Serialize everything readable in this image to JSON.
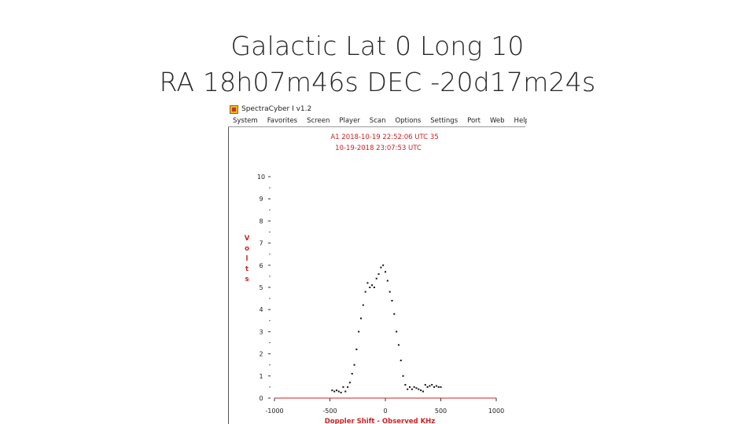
{
  "slide": {
    "title_line1": "Galactic Lat 0 Long 10",
    "title_line2": "RA 18h07m46s DEC -20d17m24s"
  },
  "window": {
    "title": "SpectraCyber I v1.2",
    "icon": "spectracyber-app-icon"
  },
  "menu": {
    "items": [
      "System",
      "Favorites",
      "Screen",
      "Player",
      "Scan",
      "Options",
      "Settings",
      "Port",
      "Web",
      "Help"
    ]
  },
  "plot_header": {
    "line1": "A1 2018-10-19 22:52:06 UTC 35",
    "line2": "10-19-2018  23:07:53 UTC"
  },
  "colors": {
    "accent_red": "#cc2222",
    "data_points": "#111111"
  },
  "chart_data": {
    "type": "scatter",
    "title": "",
    "xlabel": "Doppler Shift - Observed KHz",
    "ylabel": "Volts",
    "ylabel_letters": [
      "V",
      "o",
      "l",
      "t",
      "s"
    ],
    "xlim": [
      -1000,
      1000
    ],
    "ylim": [
      0,
      10
    ],
    "x_ticks": [
      -1000,
      -500,
      0,
      500,
      1000
    ],
    "x_tick_labels": [
      "-1000",
      "-500",
      "0",
      "500",
      "1000"
    ],
    "y_ticks": [
      0,
      1,
      2,
      3,
      4,
      5,
      6,
      7,
      8,
      9,
      10
    ],
    "grid": false,
    "baseline_color": "#cc2222",
    "series": [
      {
        "x": [
          -480,
          -460,
          -440,
          -420,
          -400,
          -380,
          -360,
          -340,
          -320,
          -300,
          -280,
          -260,
          -240,
          -220,
          -200,
          -180,
          -160,
          -140,
          -120,
          -100,
          -80,
          -60,
          -40,
          -20,
          0,
          20,
          40,
          60,
          80,
          100,
          120,
          140,
          160,
          180,
          200,
          220,
          240,
          260,
          280,
          300,
          320,
          340,
          360,
          380,
          400,
          420,
          440,
          460,
          480,
          500
        ],
        "y": [
          0.35,
          0.3,
          0.35,
          0.3,
          0.25,
          0.5,
          0.3,
          0.5,
          0.7,
          1.1,
          1.5,
          2.2,
          3.0,
          3.6,
          4.2,
          4.8,
          5.2,
          5.0,
          5.1,
          5.0,
          5.4,
          5.6,
          5.9,
          6.0,
          5.7,
          5.3,
          4.8,
          4.4,
          3.8,
          3.0,
          2.4,
          1.7,
          1.0,
          0.6,
          0.4,
          0.5,
          0.4,
          0.5,
          0.45,
          0.4,
          0.35,
          0.3,
          0.6,
          0.5,
          0.55,
          0.6,
          0.5,
          0.55,
          0.5,
          0.5
        ]
      }
    ]
  }
}
